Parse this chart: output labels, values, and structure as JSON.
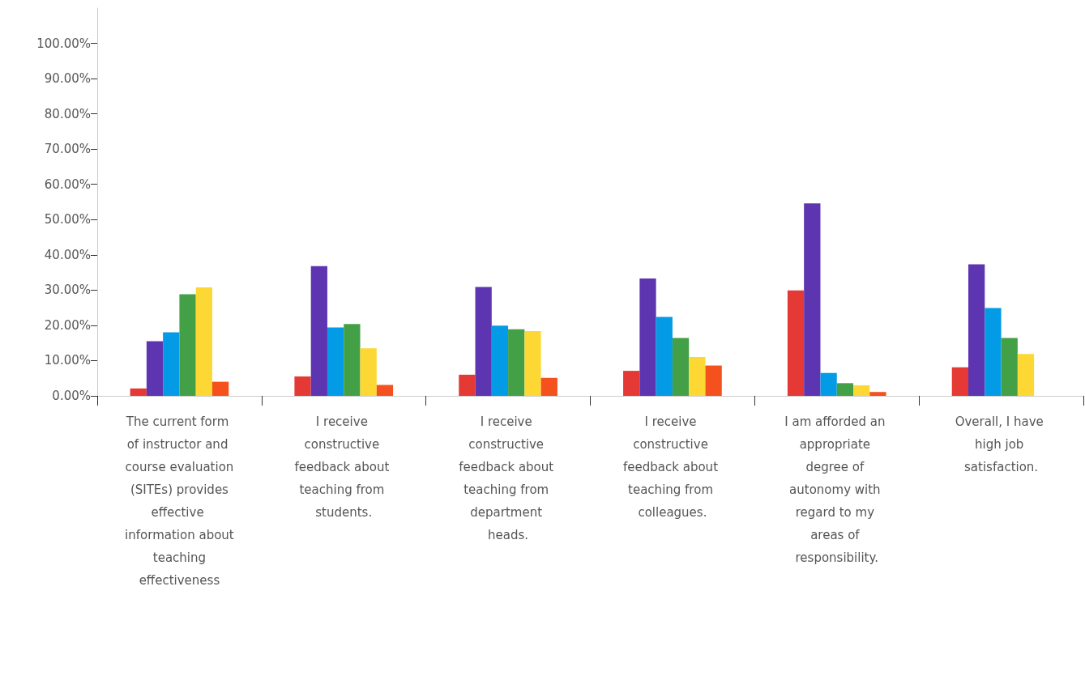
{
  "chart_data": {
    "type": "bar",
    "categories": [
      "The current form of instructor and course evaluation (SITEs) provides effective information about teaching effectiveness",
      "I receive constructive feedback about teaching from students.",
      "I receive constructive feedback about teaching from department heads.",
      "I receive constructive feedback about teaching from colleagues.",
      "I am afforded an appropriate degree of autonomy with regard to my areas of responsibility.",
      "Overall, I have high job satisfaction."
    ],
    "series": [
      {
        "color": "#e53935",
        "values": [
          2.1,
          5.5,
          6.0,
          7.1,
          29.9,
          8.1
        ]
      },
      {
        "color": "#5e35b1",
        "values": [
          15.5,
          36.8,
          30.9,
          33.3,
          54.6,
          37.3
        ]
      },
      {
        "color": "#039be5",
        "values": [
          18.0,
          19.4,
          19.9,
          22.4,
          6.5,
          24.9
        ]
      },
      {
        "color": "#43a047",
        "values": [
          28.8,
          20.4,
          18.9,
          16.4,
          3.6,
          16.4
        ]
      },
      {
        "color": "#fdd835",
        "values": [
          30.8,
          13.5,
          18.4,
          11.0,
          3.0,
          11.9
        ]
      },
      {
        "color": "#f4511e",
        "values": [
          4.0,
          3.1,
          5.1,
          8.6,
          1.1,
          null
        ]
      }
    ],
    "ylim": [
      0,
      110
    ],
    "yticks": [
      {
        "value": 0,
        "label": "0.00%"
      },
      {
        "value": 10,
        "label": "10.00%"
      },
      {
        "value": 20,
        "label": "20.00%"
      },
      {
        "value": 30,
        "label": "30.00%"
      },
      {
        "value": 40,
        "label": "40.00%"
      },
      {
        "value": 50,
        "label": "50.00%"
      },
      {
        "value": 60,
        "label": "60.00%"
      },
      {
        "value": 70,
        "label": "70.00%"
      },
      {
        "value": 80,
        "label": "80.00%"
      },
      {
        "value": 90,
        "label": "90.00%"
      },
      {
        "value": 100,
        "label": "100.00%"
      }
    ],
    "grid": false
  }
}
